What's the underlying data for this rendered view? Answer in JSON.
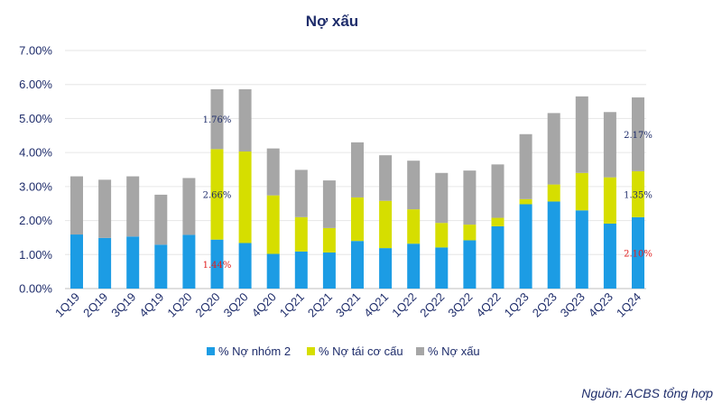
{
  "chart_data": {
    "type": "bar",
    "stacked": true,
    "title": "Nợ xấu",
    "xlabel": "",
    "ylabel": "",
    "ylim": [
      0,
      7
    ],
    "y_ticks": [
      "0.00%",
      "1.00%",
      "2.00%",
      "3.00%",
      "4.00%",
      "5.00%",
      "6.00%",
      "7.00%"
    ],
    "y_tick_values": [
      0,
      1,
      2,
      3,
      4,
      5,
      6,
      7
    ],
    "grid": true,
    "categories": [
      "1Q19",
      "2Q19",
      "3Q19",
      "4Q19",
      "1Q20",
      "2Q20",
      "3Q20",
      "4Q20",
      "1Q21",
      "2Q21",
      "3Q21",
      "4Q21",
      "1Q22",
      "2Q22",
      "3Q22",
      "4Q22",
      "1Q23",
      "2Q23",
      "3Q23",
      "4Q23",
      "1Q24"
    ],
    "series": [
      {
        "name": "% Nợ nhóm 2",
        "color": "#1c9ce4",
        "values": [
          1.59,
          1.49,
          1.53,
          1.29,
          1.58,
          1.44,
          1.34,
          1.02,
          1.09,
          1.06,
          1.4,
          1.19,
          1.32,
          1.21,
          1.42,
          1.83,
          2.48,
          2.56,
          2.3,
          1.91,
          2.1
        ]
      },
      {
        "name": "% Nợ tái cơ cấu",
        "color": "#d6de00",
        "values": [
          0,
          0,
          0,
          0,
          0,
          2.66,
          2.69,
          1.72,
          1.01,
          0.72,
          1.28,
          1.39,
          1.01,
          0.72,
          0.46,
          0.25,
          0.15,
          0.5,
          1.1,
          1.36,
          1.35
        ]
      },
      {
        "name": "% Nợ xấu",
        "color": "#a6a6a6",
        "values": [
          1.71,
          1.71,
          1.77,
          1.47,
          1.67,
          1.76,
          1.83,
          1.38,
          1.39,
          1.4,
          1.62,
          1.34,
          1.43,
          1.47,
          1.59,
          1.57,
          1.91,
          2.1,
          2.25,
          1.92,
          2.17
        ]
      }
    ],
    "annotations": [
      {
        "category": "2Q20",
        "series": "% Nợ xấu",
        "text": "1.76%",
        "color": "#1f2d6b"
      },
      {
        "category": "2Q20",
        "series": "% Nợ tái cơ cấu",
        "text": "2.66%",
        "color": "#1f2d6b"
      },
      {
        "category": "2Q20",
        "series": "% Nợ nhóm 2",
        "text": "1.44%",
        "color": "#e02020"
      },
      {
        "category": "1Q24",
        "series": "% Nợ xấu",
        "text": "2.17%",
        "color": "#1f2d6b"
      },
      {
        "category": "1Q24",
        "series": "% Nợ tái cơ cấu",
        "text": "1.35%",
        "color": "#1f2d6b"
      },
      {
        "category": "1Q24",
        "series": "% Nợ nhóm 2",
        "text": "2.10%",
        "color": "#e02020"
      }
    ],
    "legend_position": "bottom-center"
  },
  "source": "Nguồn: ACBS tổng hợp"
}
